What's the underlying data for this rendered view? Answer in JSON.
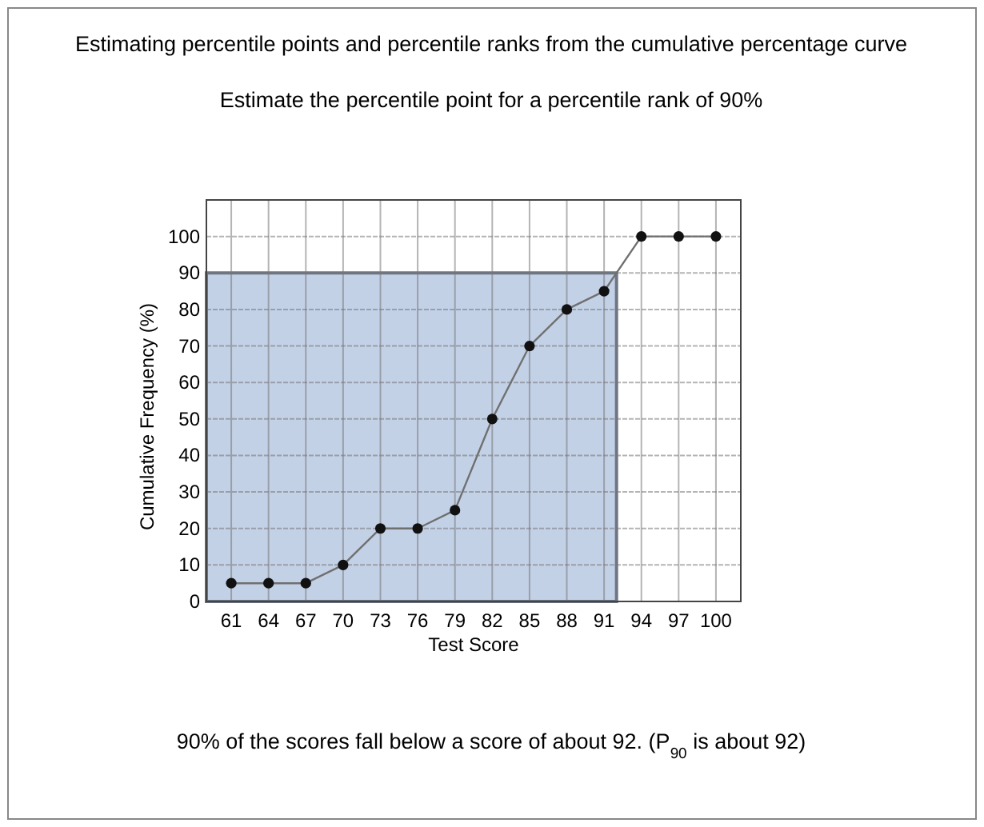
{
  "chart_data": {
    "type": "line",
    "title": "Estimating percentile points and percentile ranks from the cumulative percentage curve",
    "subtitle": "Estimate the percentile point for a percentile rank of 90%",
    "xlabel": "Test Score",
    "ylabel": "Cumulative Frequency (%)",
    "annotations": [
      "90% of the scores fall below a score of about 92.  (P$_{90}$ is about 92)"
    ],
    "series": [
      {
        "type": "area",
        "marker": "none",
        "color": "#c3d1e7",
        "x": [
          59,
          92
        ],
        "values": [
          90,
          90
        ]
      },
      {
        "color": "#707070",
        "x": [
          61,
          64,
          67,
          70,
          73,
          76,
          79,
          82,
          85,
          88,
          91,
          94,
          97,
          100
        ],
        "values": [
          5,
          5,
          5,
          10,
          20,
          20,
          25,
          50,
          70,
          80,
          85,
          100,
          100,
          100
        ]
      }
    ],
    "xlim": [
      59,
      102
    ],
    "xticks": [
      61,
      64,
      67,
      70,
      73,
      76,
      79,
      82,
      85,
      88,
      91,
      94,
      97,
      100
    ],
    "ylim": [
      0,
      110
    ],
    "yticks": [
      0,
      10,
      20,
      30,
      40,
      50,
      60,
      70,
      80,
      90,
      100
    ],
    "grid": true,
    "marker": "circle",
    "line_style": "solid"
  }
}
